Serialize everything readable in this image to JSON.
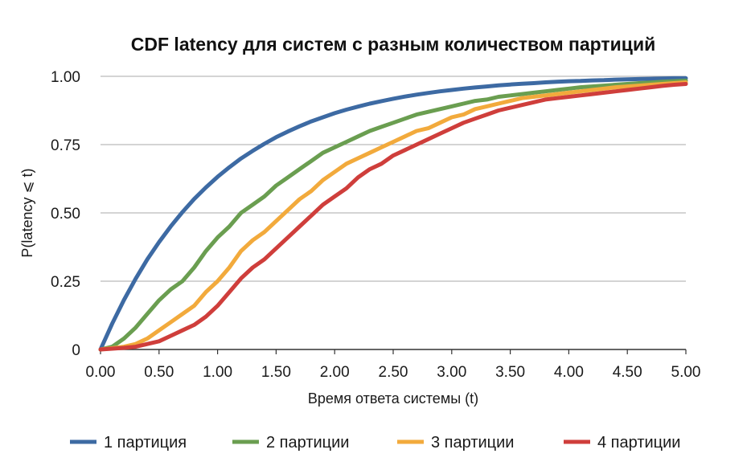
{
  "chart_data": {
    "type": "line",
    "title": "CDF latency для систем с разным количеством партиций",
    "xlabel": "Время ответа системы (t)",
    "ylabel": "P(latency ⩽ t)",
    "xlim": [
      0,
      5
    ],
    "ylim": [
      0,
      1
    ],
    "x_ticks": [
      "0.00",
      "0.50",
      "1.00",
      "1.50",
      "2.00",
      "2.50",
      "3.00",
      "3.50",
      "4.00",
      "4.50",
      "5.00"
    ],
    "y_ticks": [
      "0",
      "0.25",
      "0.50",
      "0.75",
      "1.00"
    ],
    "grid": true,
    "legend_position": "bottom",
    "x": [
      0,
      0.1,
      0.2,
      0.3,
      0.4,
      0.5,
      0.6,
      0.7,
      0.8,
      0.9,
      1.0,
      1.1,
      1.2,
      1.3,
      1.4,
      1.5,
      1.6,
      1.7,
      1.8,
      1.9,
      2.0,
      2.1,
      2.2,
      2.3,
      2.4,
      2.5,
      2.6,
      2.7,
      2.8,
      2.9,
      3.0,
      3.1,
      3.2,
      3.3,
      3.4,
      3.5,
      3.6,
      3.7,
      3.8,
      3.9,
      4.0,
      4.1,
      4.2,
      4.3,
      4.4,
      4.5,
      4.6,
      4.7,
      4.8,
      4.9,
      5.0
    ],
    "series": [
      {
        "name": "1 партиция",
        "color": "#3d6aa3",
        "values": [
          0,
          0.095,
          0.181,
          0.259,
          0.33,
          0.393,
          0.451,
          0.503,
          0.551,
          0.593,
          0.632,
          0.667,
          0.699,
          0.727,
          0.753,
          0.777,
          0.798,
          0.817,
          0.835,
          0.85,
          0.865,
          0.878,
          0.889,
          0.9,
          0.909,
          0.918,
          0.926,
          0.933,
          0.939,
          0.945,
          0.95,
          0.955,
          0.959,
          0.963,
          0.967,
          0.97,
          0.973,
          0.975,
          0.978,
          0.98,
          0.982,
          0.983,
          0.985,
          0.986,
          0.988,
          0.989,
          0.99,
          0.991,
          0.992,
          0.993,
          0.993
        ]
      },
      {
        "name": "2 партиции",
        "color": "#6a9e50",
        "values": [
          0,
          0.01,
          0.04,
          0.08,
          0.13,
          0.18,
          0.22,
          0.25,
          0.3,
          0.36,
          0.41,
          0.45,
          0.5,
          0.53,
          0.56,
          0.6,
          0.63,
          0.66,
          0.69,
          0.72,
          0.74,
          0.76,
          0.78,
          0.8,
          0.815,
          0.83,
          0.845,
          0.86,
          0.87,
          0.88,
          0.89,
          0.9,
          0.91,
          0.915,
          0.925,
          0.93,
          0.935,
          0.94,
          0.945,
          0.95,
          0.955,
          0.96,
          0.963,
          0.966,
          0.969,
          0.972,
          0.975,
          0.977,
          0.98,
          0.982,
          0.984
        ]
      },
      {
        "name": "3 партиции",
        "color": "#f2aa3c",
        "values": [
          0,
          0.005,
          0.01,
          0.02,
          0.04,
          0.07,
          0.1,
          0.13,
          0.16,
          0.21,
          0.25,
          0.3,
          0.36,
          0.4,
          0.43,
          0.47,
          0.51,
          0.55,
          0.58,
          0.62,
          0.65,
          0.68,
          0.7,
          0.72,
          0.74,
          0.76,
          0.78,
          0.8,
          0.81,
          0.83,
          0.85,
          0.86,
          0.88,
          0.89,
          0.9,
          0.91,
          0.92,
          0.925,
          0.93,
          0.935,
          0.94,
          0.945,
          0.95,
          0.955,
          0.96,
          0.963,
          0.966,
          0.969,
          0.972,
          0.975,
          0.978
        ]
      },
      {
        "name": "4 партиции",
        "color": "#cf3e3b",
        "values": [
          0,
          0.003,
          0.006,
          0.01,
          0.02,
          0.03,
          0.05,
          0.07,
          0.09,
          0.12,
          0.16,
          0.21,
          0.26,
          0.3,
          0.33,
          0.37,
          0.41,
          0.45,
          0.49,
          0.53,
          0.56,
          0.59,
          0.63,
          0.66,
          0.68,
          0.71,
          0.73,
          0.75,
          0.77,
          0.79,
          0.81,
          0.83,
          0.845,
          0.86,
          0.875,
          0.885,
          0.895,
          0.905,
          0.915,
          0.92,
          0.925,
          0.93,
          0.935,
          0.94,
          0.945,
          0.95,
          0.955,
          0.96,
          0.965,
          0.969,
          0.972
        ]
      }
    ]
  }
}
